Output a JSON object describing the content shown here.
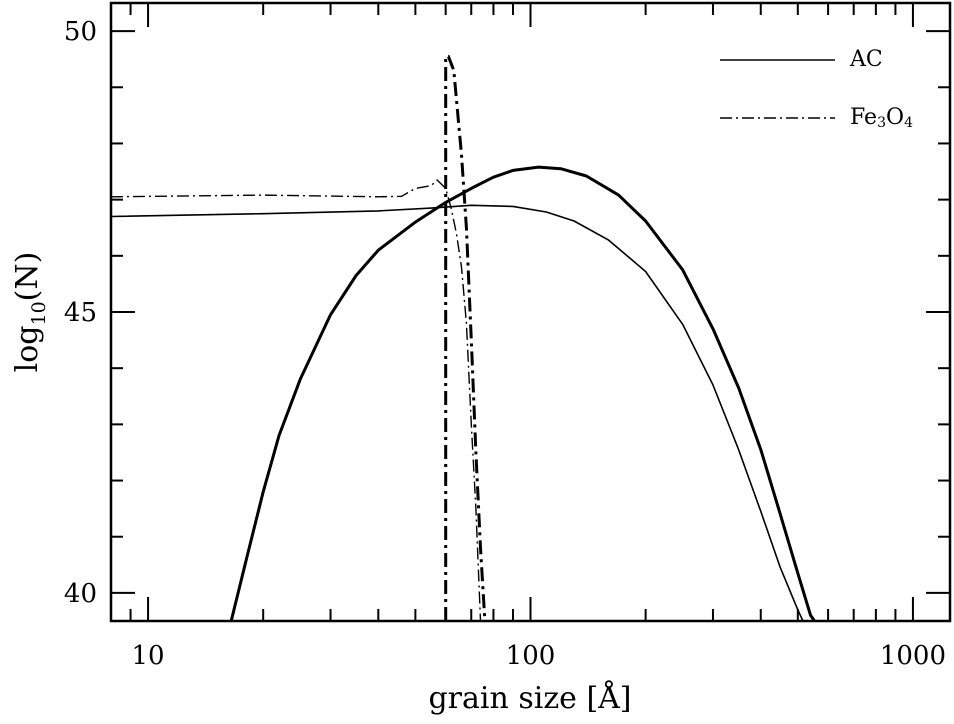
{
  "chart_data": {
    "type": "line",
    "title": "",
    "xlabel": "grain size [Å]",
    "ylabel_main": "log",
    "ylabel_sub": "10",
    "ylabel_tail": "(N)",
    "xscale": "log",
    "xlim": [
      8.0,
      1250
    ],
    "ylim": [
      39.5,
      50.5
    ],
    "grid": false,
    "legend_position": "top-right",
    "x_ticks": [
      {
        "value": 10,
        "label": "10"
      },
      {
        "value": 100,
        "label": "100"
      },
      {
        "value": 1000,
        "label": "1000"
      }
    ],
    "y_ticks": [
      {
        "value": 40,
        "label": "40"
      },
      {
        "value": 45,
        "label": "45"
      },
      {
        "value": 50,
        "label": "50"
      }
    ],
    "legend": [
      {
        "text": "AC",
        "style": "solid"
      },
      {
        "base": "Fe",
        "sub1": "3",
        "mid": "O",
        "sub2": "4",
        "style": "dashdot"
      }
    ],
    "series": [
      {
        "name": "AC",
        "style": "solid",
        "width": 1.6,
        "points": [
          [
            8,
            46.7
          ],
          [
            20,
            46.75
          ],
          [
            40,
            46.8
          ],
          [
            55,
            46.85
          ],
          [
            70,
            46.9
          ],
          [
            90,
            46.88
          ],
          [
            110,
            46.78
          ],
          [
            130,
            46.62
          ],
          [
            160,
            46.28
          ],
          [
            200,
            45.72
          ],
          [
            250,
            44.78
          ],
          [
            300,
            43.7
          ],
          [
            350,
            42.55
          ],
          [
            400,
            41.45
          ],
          [
            450,
            40.45
          ],
          [
            500,
            39.7
          ],
          [
            520,
            39.45
          ]
        ]
      },
      {
        "name": "AC",
        "style": "solid",
        "width": 3,
        "points": [
          [
            16.5,
            39.5
          ],
          [
            18,
            40.55
          ],
          [
            20,
            41.8
          ],
          [
            22,
            42.8
          ],
          [
            25,
            43.8
          ],
          [
            30,
            44.95
          ],
          [
            35,
            45.65
          ],
          [
            40,
            46.1
          ],
          [
            50,
            46.6
          ],
          [
            60,
            46.95
          ],
          [
            70,
            47.2
          ],
          [
            80,
            47.4
          ],
          [
            90,
            47.52
          ],
          [
            105,
            47.58
          ],
          [
            120,
            47.55
          ],
          [
            140,
            47.42
          ],
          [
            170,
            47.08
          ],
          [
            200,
            46.62
          ],
          [
            250,
            45.75
          ],
          [
            300,
            44.7
          ],
          [
            350,
            43.65
          ],
          [
            400,
            42.55
          ],
          [
            450,
            41.4
          ],
          [
            500,
            40.35
          ],
          [
            540,
            39.6
          ],
          [
            560,
            39.45
          ]
        ]
      },
      {
        "name": "Fe3O4",
        "style": "dashdot",
        "width": 1.4,
        "points": [
          [
            8,
            47.05
          ],
          [
            20,
            47.08
          ],
          [
            40,
            47.05
          ],
          [
            46,
            47.06
          ],
          [
            50,
            47.2
          ],
          [
            55,
            47.25
          ],
          [
            57,
            47.35
          ],
          [
            60,
            47.2
          ],
          [
            62,
            46.85
          ],
          [
            64,
            46.4
          ],
          [
            66,
            45.8
          ],
          [
            68,
            44.8
          ],
          [
            70,
            43.0
          ],
          [
            72,
            41.5
          ],
          [
            74,
            39.5
          ]
        ]
      },
      {
        "name": "Fe3O4",
        "style": "dashdot",
        "width": 3,
        "points": [
          [
            60,
            39.5
          ],
          [
            60,
            42.0
          ],
          [
            60,
            45.0
          ],
          [
            60,
            48.0
          ],
          [
            60,
            49.55
          ],
          [
            61,
            49.55
          ],
          [
            63,
            49.3
          ],
          [
            66,
            47.8
          ],
          [
            68,
            46.5
          ],
          [
            70,
            44.5
          ],
          [
            72,
            42.5
          ],
          [
            74,
            40.8
          ],
          [
            76,
            39.5
          ]
        ]
      }
    ]
  }
}
